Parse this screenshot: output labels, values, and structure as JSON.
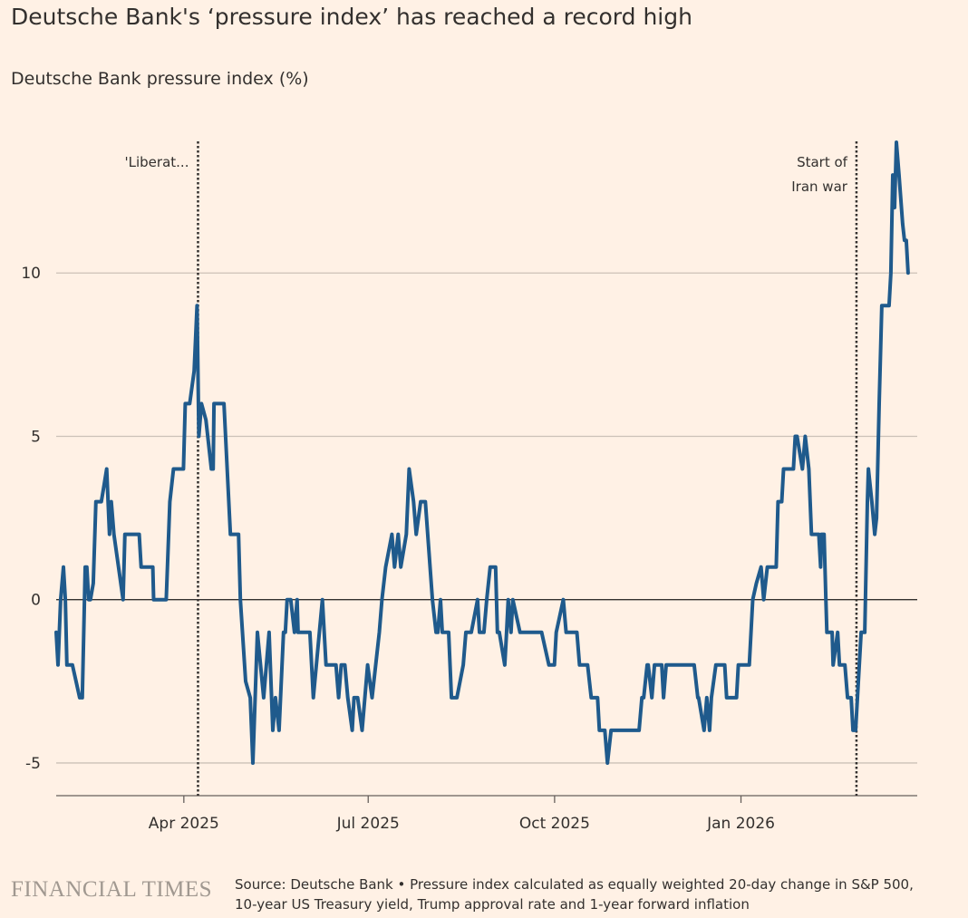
{
  "title": "Deutsche Bank's ‘pressure index’ has reached a record high",
  "subtitle": "Deutsche Bank pressure index (%)",
  "footer": {
    "logo": "FINANCIAL TIMES",
    "source_line1": "Source: Deutsche Bank • Pressure index calculated as equally weighted 20-day change in S&P 500,",
    "source_line2": "10-year US Treasury yield, Trump approval rate and 1-year forward inflation"
  },
  "colors": {
    "line": "#1f5a8c",
    "background": "#fff1e5",
    "grid": "#ccc1b7",
    "zero": "#33302e"
  },
  "chart_data": {
    "type": "line",
    "title": "Deutsche Bank pressure index (%)",
    "xlabel": "",
    "x_unit": "days since 28 Jan 2025",
    "ylabel": "Pressure index (%)",
    "xlim": [
      0,
      425
    ],
    "ylim": [
      -6,
      14.5
    ],
    "grid": true,
    "x_ticks": [
      {
        "value": 63,
        "label": "Apr 2025"
      },
      {
        "value": 154,
        "label": "Jul 2025"
      },
      {
        "value": 246,
        "label": "Oct 2025"
      },
      {
        "value": 338,
        "label": "Jan 2026"
      }
    ],
    "y_ticks": [
      {
        "value": -5,
        "label": "-5"
      },
      {
        "value": 0,
        "label": "0"
      },
      {
        "value": 5,
        "label": "5"
      },
      {
        "value": 10,
        "label": "10"
      }
    ],
    "annotations": [
      {
        "x": 70,
        "lines": [
          "'Liberat..."
        ]
      },
      {
        "x": 395,
        "lines": [
          "Start of",
          "Iran war"
        ]
      }
    ],
    "series": [
      {
        "name": "Deutsche Bank pressure index",
        "x": [
          0,
          0.9,
          2.2,
          3.6,
          4.5,
          5.3,
          8.0,
          9.8,
          11.6,
          12.9,
          14.3,
          15.1,
          16.0,
          16.9,
          18.3,
          19.6,
          22.3,
          23.6,
          24.9,
          26.3,
          27.2,
          28.5,
          33.0,
          33.9,
          41.0,
          41.9,
          47.7,
          48.1,
          54.3,
          56.1,
          57.9,
          62.8,
          63.7,
          65.9,
          68.1,
          69.5,
          70.4,
          71.7,
          73.9,
          76.6,
          77.5,
          77.9,
          82.8,
          86.0,
          90.0,
          90.9,
          93.5,
          95.8,
          97.1,
          99.3,
          102.4,
          105.1,
          106.9,
          108.2,
          110.0,
          112.2,
          113.1,
          114.0,
          115.8,
          117.6,
          118.9,
          119.4,
          125.2,
          126.9,
          131.4,
          133.2,
          138.1,
          139.4,
          140.7,
          142.5,
          143.9,
          146.1,
          147.0,
          148.8,
          151.0,
          153.7,
          155.9,
          159.5,
          160.8,
          162.6,
          165.7,
          167.0,
          168.8,
          170.1,
          172.8,
          174.2,
          176.4,
          177.7,
          179.9,
          182.2,
          185.7,
          187.5,
          188.4,
          189.7,
          190.6,
          193.7,
          195.1,
          197.8,
          200.9,
          202.2,
          204.9,
          208.0,
          208.9,
          211.1,
          212.5,
          214.2,
          216.9,
          217.8,
          218.7,
          221.4,
          222.3,
          223.1,
          224.5,
          225.4,
          228.9,
          239.6,
          243.2,
          245.9,
          246.8,
          250.3,
          251.7,
          257.0,
          258.3,
          262.3,
          264.1,
          267.2,
          268.1,
          270.8,
          272.1,
          273.9,
          287.7,
          289.1,
          290.0,
          291.7,
          292.2,
          294.0,
          295.3,
          298.9,
          299.8,
          301.1,
          314.9,
          316.7,
          317.1,
          319.8,
          321.1,
          322.5,
          323.4,
          325.6,
          330.0,
          330.9,
          335.8,
          336.7,
          342.1,
          343.8,
          345.6,
          347.9,
          349.2,
          351.0,
          355.4,
          356.3,
          358.1,
          359.0,
          363.9,
          364.8,
          365.7,
          368.3,
          369.7,
          371.5,
          372.8,
          376.4,
          377.3,
          377.7,
          379.0,
          379.9,
          380.4,
          383.0,
          383.5,
          385.7,
          386.6,
          389.3,
          390.6,
          392.4,
          393.3,
          394.6,
          397.3,
          399.1,
          400.4,
          400.9,
          402.6,
          404.0,
          404.9,
          406.2,
          407.5,
          411.1,
          412.0,
          412.9,
          413.8,
          414.7,
          416.0,
          417.8,
          418.7,
          419.6,
          420.5
        ],
        "y": [
          -1,
          -2,
          0,
          1,
          0,
          -2,
          -2,
          -2.5,
          -3,
          -3,
          1,
          1,
          0,
          0,
          0.5,
          3,
          3,
          3.5,
          4,
          2,
          3,
          2,
          0,
          2,
          2,
          1,
          1,
          0,
          0,
          3,
          4,
          4,
          6,
          6,
          7,
          9,
          5,
          6,
          5.5,
          4,
          4,
          6,
          6,
          2,
          2,
          0,
          -2.5,
          -3,
          -5,
          -1,
          -3,
          -1,
          -4,
          -3,
          -4,
          -1,
          -1,
          0,
          0,
          -1,
          0,
          -1,
          -1,
          -3,
          0,
          -2,
          -2,
          -3,
          -2,
          -2,
          -3,
          -4,
          -3,
          -3,
          -4,
          -2,
          -3,
          -1,
          0,
          1,
          2,
          1,
          2,
          1,
          2,
          4,
          3,
          2,
          3,
          3,
          0,
          -1,
          -1,
          0,
          -1,
          -1,
          -3,
          -3,
          -2,
          -1,
          -1,
          0,
          -1,
          -1,
          0,
          1,
          1,
          -1,
          -1,
          -2,
          -1,
          0,
          -1,
          0,
          -1,
          -1,
          -2,
          -2,
          -1,
          0,
          -1,
          -1,
          -2,
          -2,
          -3,
          -3,
          -4,
          -4,
          -5,
          -4,
          -4,
          -3,
          -3,
          -2,
          -2,
          -3,
          -2,
          -2,
          -3,
          -2,
          -2,
          -3,
          -3,
          -4,
          -3,
          -4,
          -3,
          -2,
          -2,
          -3,
          -3,
          -2,
          -2,
          0,
          0.5,
          1,
          0,
          1,
          1,
          3,
          3,
          4,
          4,
          5,
          5,
          4,
          5,
          4,
          2,
          2,
          1,
          2,
          2,
          0,
          -1,
          -1,
          -2,
          -1,
          -2,
          -2,
          -3,
          -3,
          -4,
          -4,
          -1,
          -1,
          3,
          4,
          3,
          2,
          2.5,
          6,
          9,
          9,
          10,
          13,
          12,
          14,
          13,
          11.5,
          11,
          11,
          10
        ]
      }
    ]
  }
}
